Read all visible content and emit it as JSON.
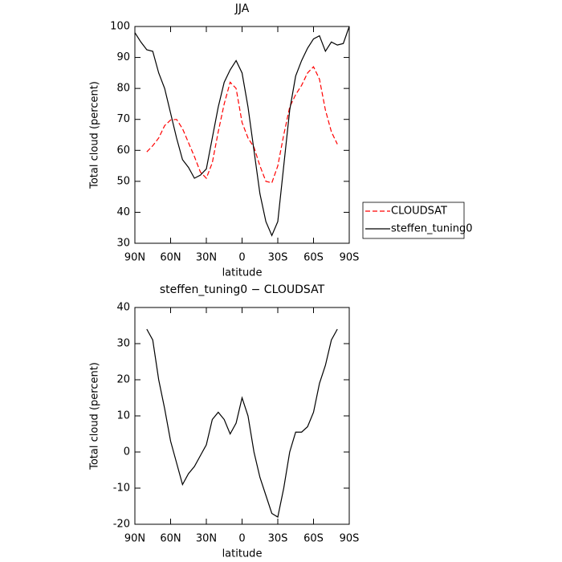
{
  "chart_data": [
    {
      "type": "line",
      "title": "JJA",
      "x_label": "latitude",
      "y_label": "Total cloud (percent)",
      "x": [
        90,
        85,
        80,
        75,
        70,
        65,
        60,
        55,
        50,
        45,
        40,
        35,
        30,
        25,
        20,
        15,
        10,
        5,
        0,
        -5,
        -10,
        -15,
        -20,
        -25,
        -30,
        -35,
        -40,
        -45,
        -50,
        -55,
        -60,
        -65,
        -70,
        -75,
        -80,
        -85,
        -90
      ],
      "series": [
        {
          "name": "CLOUDSAT",
          "color": "#ff0000",
          "style": "dashed",
          "values": [
            null,
            null,
            59.5,
            61.5,
            64,
            68,
            69.8,
            70,
            67,
            62.5,
            58,
            53,
            51,
            56,
            66,
            75,
            82,
            80,
            69,
            64,
            61,
            55,
            50,
            49.5,
            55,
            65,
            74,
            78,
            81,
            85,
            87,
            83,
            73,
            66,
            62,
            null,
            null
          ]
        },
        {
          "name": "steffen_tuning0",
          "color": "#000000",
          "style": "solid",
          "values": [
            98,
            95,
            92.5,
            92,
            85,
            80,
            72,
            64,
            57,
            54.5,
            51,
            52,
            54,
            64,
            74,
            82,
            86,
            89,
            85,
            74,
            60,
            46,
            37,
            32.5,
            37,
            55,
            73,
            84,
            89,
            93,
            96,
            97,
            92,
            95,
            94,
            94.5,
            100
          ]
        }
      ],
      "xlim": [
        90,
        -90
      ],
      "xticks": [
        {
          "value": 90,
          "label": "90N"
        },
        {
          "value": 60,
          "label": "60N"
        },
        {
          "value": 30,
          "label": "30N"
        },
        0,
        {
          "value": -30,
          "label": "30S"
        },
        {
          "value": -60,
          "label": "60S"
        },
        {
          "value": -90,
          "label": "90S"
        }
      ],
      "ylim": [
        30,
        100
      ],
      "yticks": [
        30,
        40,
        50,
        60,
        70,
        80,
        90,
        100
      ],
      "legend": "right"
    },
    {
      "type": "line",
      "title": "steffen_tuning0 − CLOUDSAT",
      "x_label": "latitude",
      "y_label": "Total cloud (percent)",
      "x": [
        80,
        75,
        70,
        65,
        60,
        55,
        50,
        45,
        40,
        35,
        30,
        25,
        20,
        15,
        10,
        5,
        0,
        -5,
        -10,
        -15,
        -20,
        -25,
        -30,
        -35,
        -40,
        -45,
        -50,
        -55,
        -60,
        -65,
        -70,
        -75,
        -80
      ],
      "series": [
        {
          "color": "#000000",
          "style": "solid",
          "values": [
            34,
            31,
            20,
            12,
            3,
            -3,
            -9,
            -6,
            -4,
            -1,
            2,
            9,
            11,
            9,
            5,
            8,
            15,
            10,
            0,
            -7,
            -12,
            -17,
            -18,
            -10,
            0,
            5.5,
            5.5,
            7,
            11,
            19,
            24,
            31,
            34
          ]
        }
      ],
      "xlim": [
        90,
        -90
      ],
      "xticks": [
        {
          "value": 90,
          "label": "90N"
        },
        {
          "value": 60,
          "label": "60N"
        },
        {
          "value": 30,
          "label": "30N"
        },
        0,
        {
          "value": -30,
          "label": "30S"
        },
        {
          "value": -60,
          "label": "60S"
        },
        {
          "value": -90,
          "label": "90S"
        }
      ],
      "ylim": [
        -20,
        40
      ],
      "yticks": [
        -20,
        -10,
        0,
        10,
        20,
        30,
        40
      ]
    }
  ]
}
